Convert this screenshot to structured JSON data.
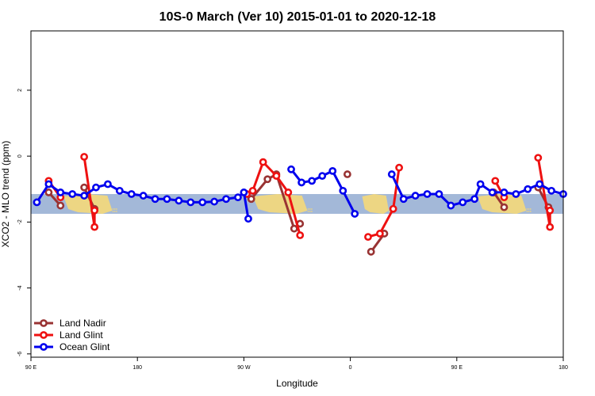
{
  "chart_data": {
    "type": "line",
    "title": "10S-0 March (Ver 10)   2015-01-01 to 2020-12-18",
    "xlabel": "Longitude",
    "ylabel": "XCO2 - MLO trend (ppm)",
    "xlim": [
      90,
      450
    ],
    "ylim": [
      -6.1,
      3.8
    ],
    "x_ticks": [
      {
        "value": 90,
        "label": "90 E"
      },
      {
        "value": 162,
        "label": "180"
      },
      {
        "value": 234,
        "label": "90 W"
      },
      {
        "value": 306,
        "label": "0"
      },
      {
        "value": 378,
        "label": "90 E"
      },
      {
        "value": 450,
        "label": "180"
      }
    ],
    "y_ticks": [
      {
        "value": 2,
        "label": "2"
      },
      {
        "value": 0,
        "label": "0"
      },
      {
        "value": -2,
        "label": "-2"
      },
      {
        "value": -4,
        "label": "-4"
      },
      {
        "value": -6,
        "label": "-6"
      }
    ],
    "band": {
      "ymin": -1.75,
      "ymax": -1.15,
      "color": "#a3b8d8"
    },
    "land_color": "#f5d97a",
    "land_regions": [
      {
        "x0": 112,
        "x1": 145
      },
      {
        "x0": 240,
        "x1": 277
      },
      {
        "x0": 314,
        "x1": 332
      },
      {
        "x0": 392,
        "x1": 425
      }
    ],
    "legend_position": "bottom-left",
    "series": [
      {
        "name": "Land Nadir",
        "color": "#993333",
        "segments": [
          [
            [
              102,
              -1.1
            ],
            [
              110,
              -1.5
            ]
          ],
          [
            [
              126,
              -0.95
            ],
            [
              133,
              -1.6
            ]
          ],
          [
            [
              239,
              -1.3
            ],
            [
              250,
              -0.7
            ],
            [
              256,
              -0.55
            ],
            [
              268,
              -2.2
            ],
            [
              272,
              -2.05
            ]
          ],
          [
            [
              304,
              -0.55
            ]
          ],
          [
            [
              320,
              -2.9
            ],
            [
              329,
              -2.35
            ]
          ],
          [
            [
              403,
              -1.1
            ],
            [
              410,
              -1.55
            ]
          ],
          [
            [
              433,
              -0.95
            ],
            [
              440,
              -1.55
            ]
          ]
        ]
      },
      {
        "name": "Land Glint",
        "color": "#ee1111",
        "segments": [
          [
            [
              102,
              -0.75
            ],
            [
              110,
              -1.25
            ]
          ],
          [
            [
              126,
              -0.02
            ],
            [
              133,
              -2.15
            ],
            [
              133,
              -1.65
            ]
          ],
          [
            [
              236,
              -1.15
            ],
            [
              240,
              -1.05
            ],
            [
              247,
              -0.18
            ],
            [
              256,
              -0.6
            ],
            [
              264,
              -1.1
            ],
            [
              272,
              -2.4
            ]
          ],
          [
            [
              318,
              -2.45
            ],
            [
              326,
              -2.35
            ],
            [
              335,
              -1.6
            ],
            [
              339,
              -0.35
            ]
          ],
          [
            [
              404,
              -0.75
            ],
            [
              410,
              -1.25
            ]
          ],
          [
            [
              433,
              -0.05
            ],
            [
              441,
              -2.15
            ],
            [
              441,
              -1.65
            ]
          ]
        ]
      },
      {
        "name": "Ocean Glint",
        "color": "#0000ee",
        "segments": [
          [
            [
              94,
              -1.4
            ],
            [
              102,
              -0.85
            ],
            [
              110,
              -1.1
            ],
            [
              118,
              -1.15
            ],
            [
              126,
              -1.2
            ],
            [
              134,
              -0.95
            ],
            [
              142,
              -0.85
            ],
            [
              150,
              -1.05
            ],
            [
              158,
              -1.15
            ],
            [
              166,
              -1.2
            ],
            [
              174,
              -1.3
            ],
            [
              182,
              -1.3
            ],
            [
              190,
              -1.35
            ],
            [
              198,
              -1.4
            ],
            [
              206,
              -1.4
            ],
            [
              214,
              -1.38
            ],
            [
              222,
              -1.3
            ],
            [
              230,
              -1.25
            ],
            [
              234,
              -1.1
            ],
            [
              237,
              -1.9
            ]
          ],
          [
            [
              266,
              -0.4
            ],
            [
              273,
              -0.8
            ],
            [
              280,
              -0.75
            ],
            [
              287,
              -0.6
            ],
            [
              294,
              -0.45
            ],
            [
              301,
              -1.05
            ],
            [
              309,
              -1.75
            ]
          ],
          [
            [
              334,
              -0.55
            ],
            [
              342,
              -1.3
            ],
            [
              350,
              -1.2
            ],
            [
              358,
              -1.15
            ],
            [
              366,
              -1.15
            ],
            [
              374,
              -1.5
            ],
            [
              382,
              -1.4
            ],
            [
              390,
              -1.3
            ],
            [
              394,
              -0.85
            ],
            [
              402,
              -1.1
            ],
            [
              410,
              -1.1
            ],
            [
              418,
              -1.15
            ],
            [
              426,
              -1.0
            ],
            [
              434,
              -0.85
            ],
            [
              442,
              -1.05
            ],
            [
              450,
              -1.15
            ]
          ]
        ]
      }
    ]
  }
}
